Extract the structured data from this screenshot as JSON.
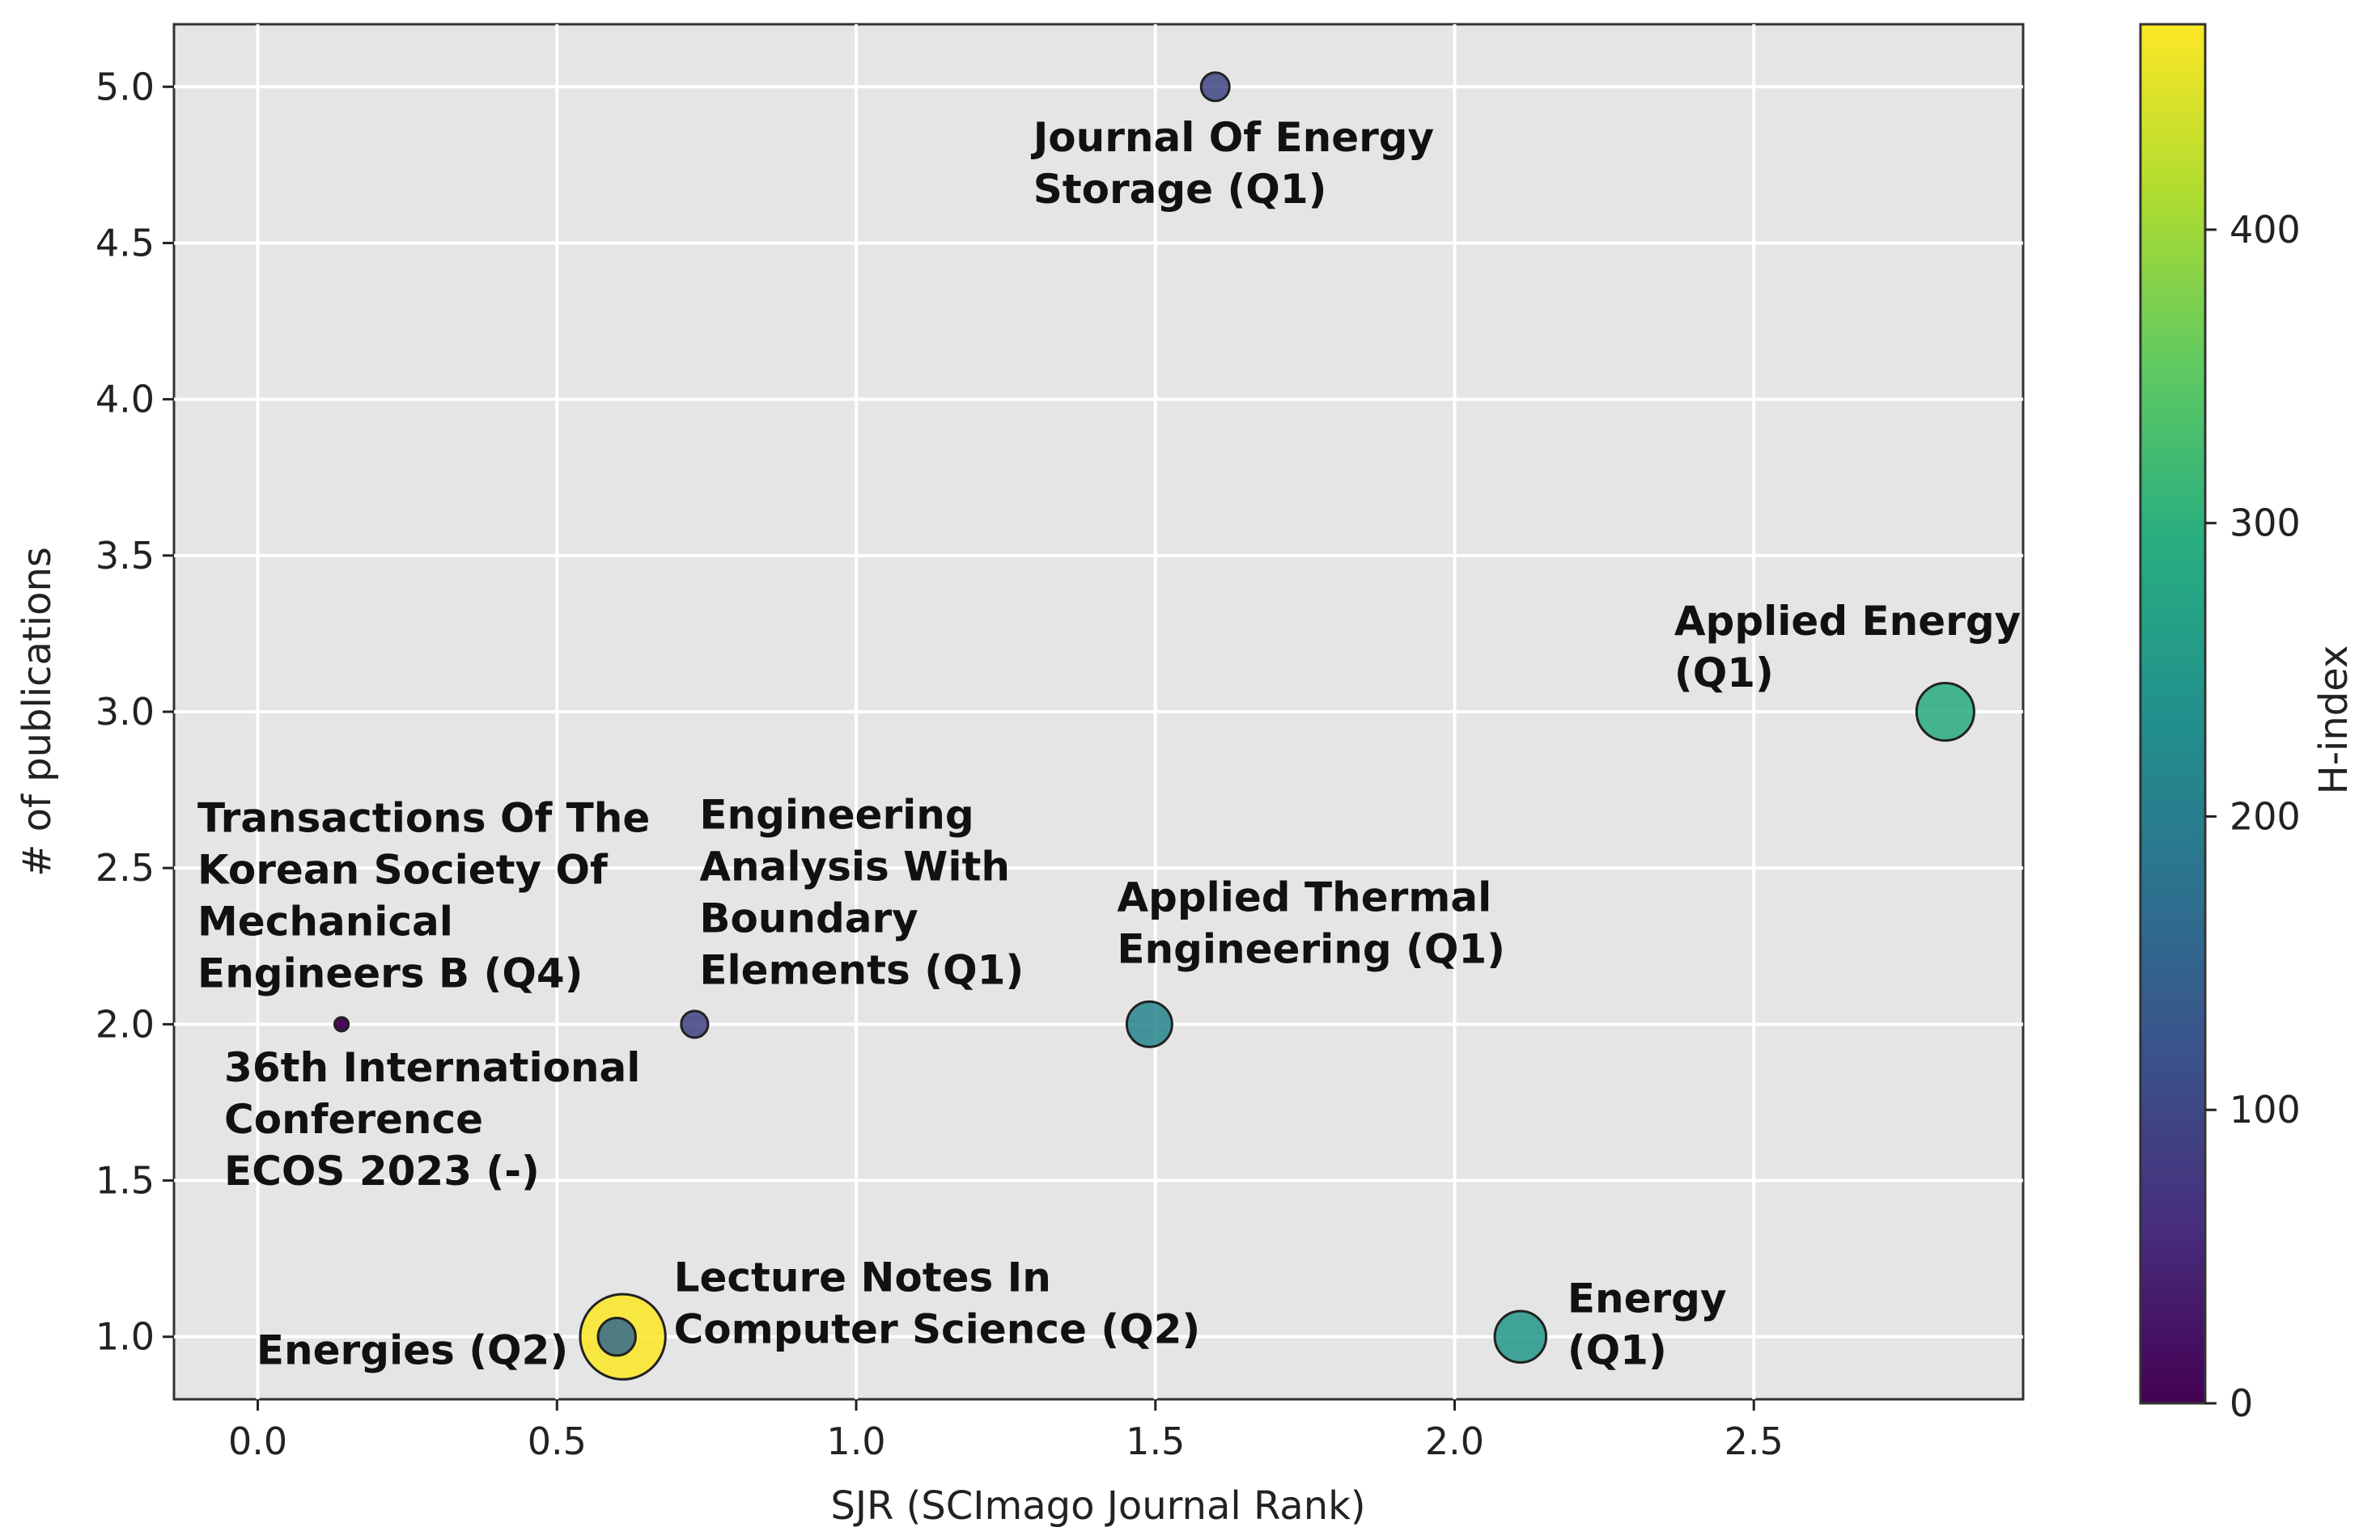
{
  "chart_data": {
    "type": "scatter",
    "title": "",
    "xlabel": "SJR (SCImago Journal Rank)",
    "ylabel": "# of publications",
    "xlim": [
      -0.14,
      2.95
    ],
    "ylim": [
      0.8,
      5.2
    ],
    "xticks": [
      0.0,
      0.5,
      1.0,
      1.5,
      2.0,
      2.5
    ],
    "xtick_labels": [
      "0.0",
      "0.5",
      "1.0",
      "1.5",
      "2.0",
      "2.5"
    ],
    "yticks": [
      1.0,
      1.5,
      2.0,
      2.5,
      3.0,
      3.5,
      4.0,
      4.5,
      5.0
    ],
    "ytick_labels": [
      "1.0",
      "1.5",
      "2.0",
      "2.5",
      "3.0",
      "3.5",
      "4.0",
      "4.5",
      "5.0"
    ],
    "grid": true,
    "colorbar": {
      "label": "H-index",
      "range": [
        0,
        470
      ],
      "ticks": [
        0,
        100,
        200,
        300,
        400
      ],
      "tick_labels": [
        "0",
        "100",
        "200",
        "300",
        "400"
      ]
    },
    "points": [
      {
        "name": "Journal Of Energy Storage",
        "label_lines": [
          "Journal Of Energy",
          "Storage (Q1)"
        ],
        "x": 1.6,
        "y": 5.0,
        "h_index": 100,
        "label_side": "below"
      },
      {
        "name": "Applied Energy",
        "label_lines": [
          "Applied Energy",
          "(Q1)"
        ],
        "x": 2.82,
        "y": 3.0,
        "h_index": 290,
        "label_side": "upper-left"
      },
      {
        "name": "Transactions Of The Korean Society Of Mechanical Engineers B",
        "label_lines": [
          "Transactions Of The",
          "Korean Society Of",
          "Mechanical",
          "Engineers B (Q4)"
        ],
        "x": 0.14,
        "y": 2.0,
        "h_index": 5,
        "label_side": "upper-left"
      },
      {
        "name": "36th International Conference ECOS 2023",
        "label_lines": [
          "36th International",
          "Conference",
          "ECOS 2023 (-)"
        ],
        "x": 0.14,
        "y": 2.0,
        "h_index": 5,
        "label_side": "below"
      },
      {
        "name": "Engineering Analysis With Boundary Elements",
        "label_lines": [
          "Engineering",
          "Analysis With",
          "Boundary",
          "Elements (Q1)"
        ],
        "x": 0.73,
        "y": 2.0,
        "h_index": 90,
        "label_side": "above"
      },
      {
        "name": "Applied Thermal Engineering",
        "label_lines": [
          "Applied Thermal",
          "Engineering (Q1)"
        ],
        "x": 1.49,
        "y": 2.0,
        "h_index": 210,
        "label_side": "above"
      },
      {
        "name": "Energies",
        "label_lines": [
          "Energies (Q2)"
        ],
        "x": 0.6,
        "y": 1.0,
        "h_index": 160,
        "label_side": "left"
      },
      {
        "name": "Lecture Notes In Computer Science",
        "label_lines": [
          "Lecture Notes In",
          "Computer Science (Q2)"
        ],
        "x": 0.61,
        "y": 1.0,
        "h_index": 470,
        "label_side": "right"
      },
      {
        "name": "Energy",
        "label_lines": [
          "Energy",
          "(Q1)"
        ],
        "x": 2.11,
        "y": 1.0,
        "h_index": 250,
        "label_side": "right"
      }
    ]
  }
}
